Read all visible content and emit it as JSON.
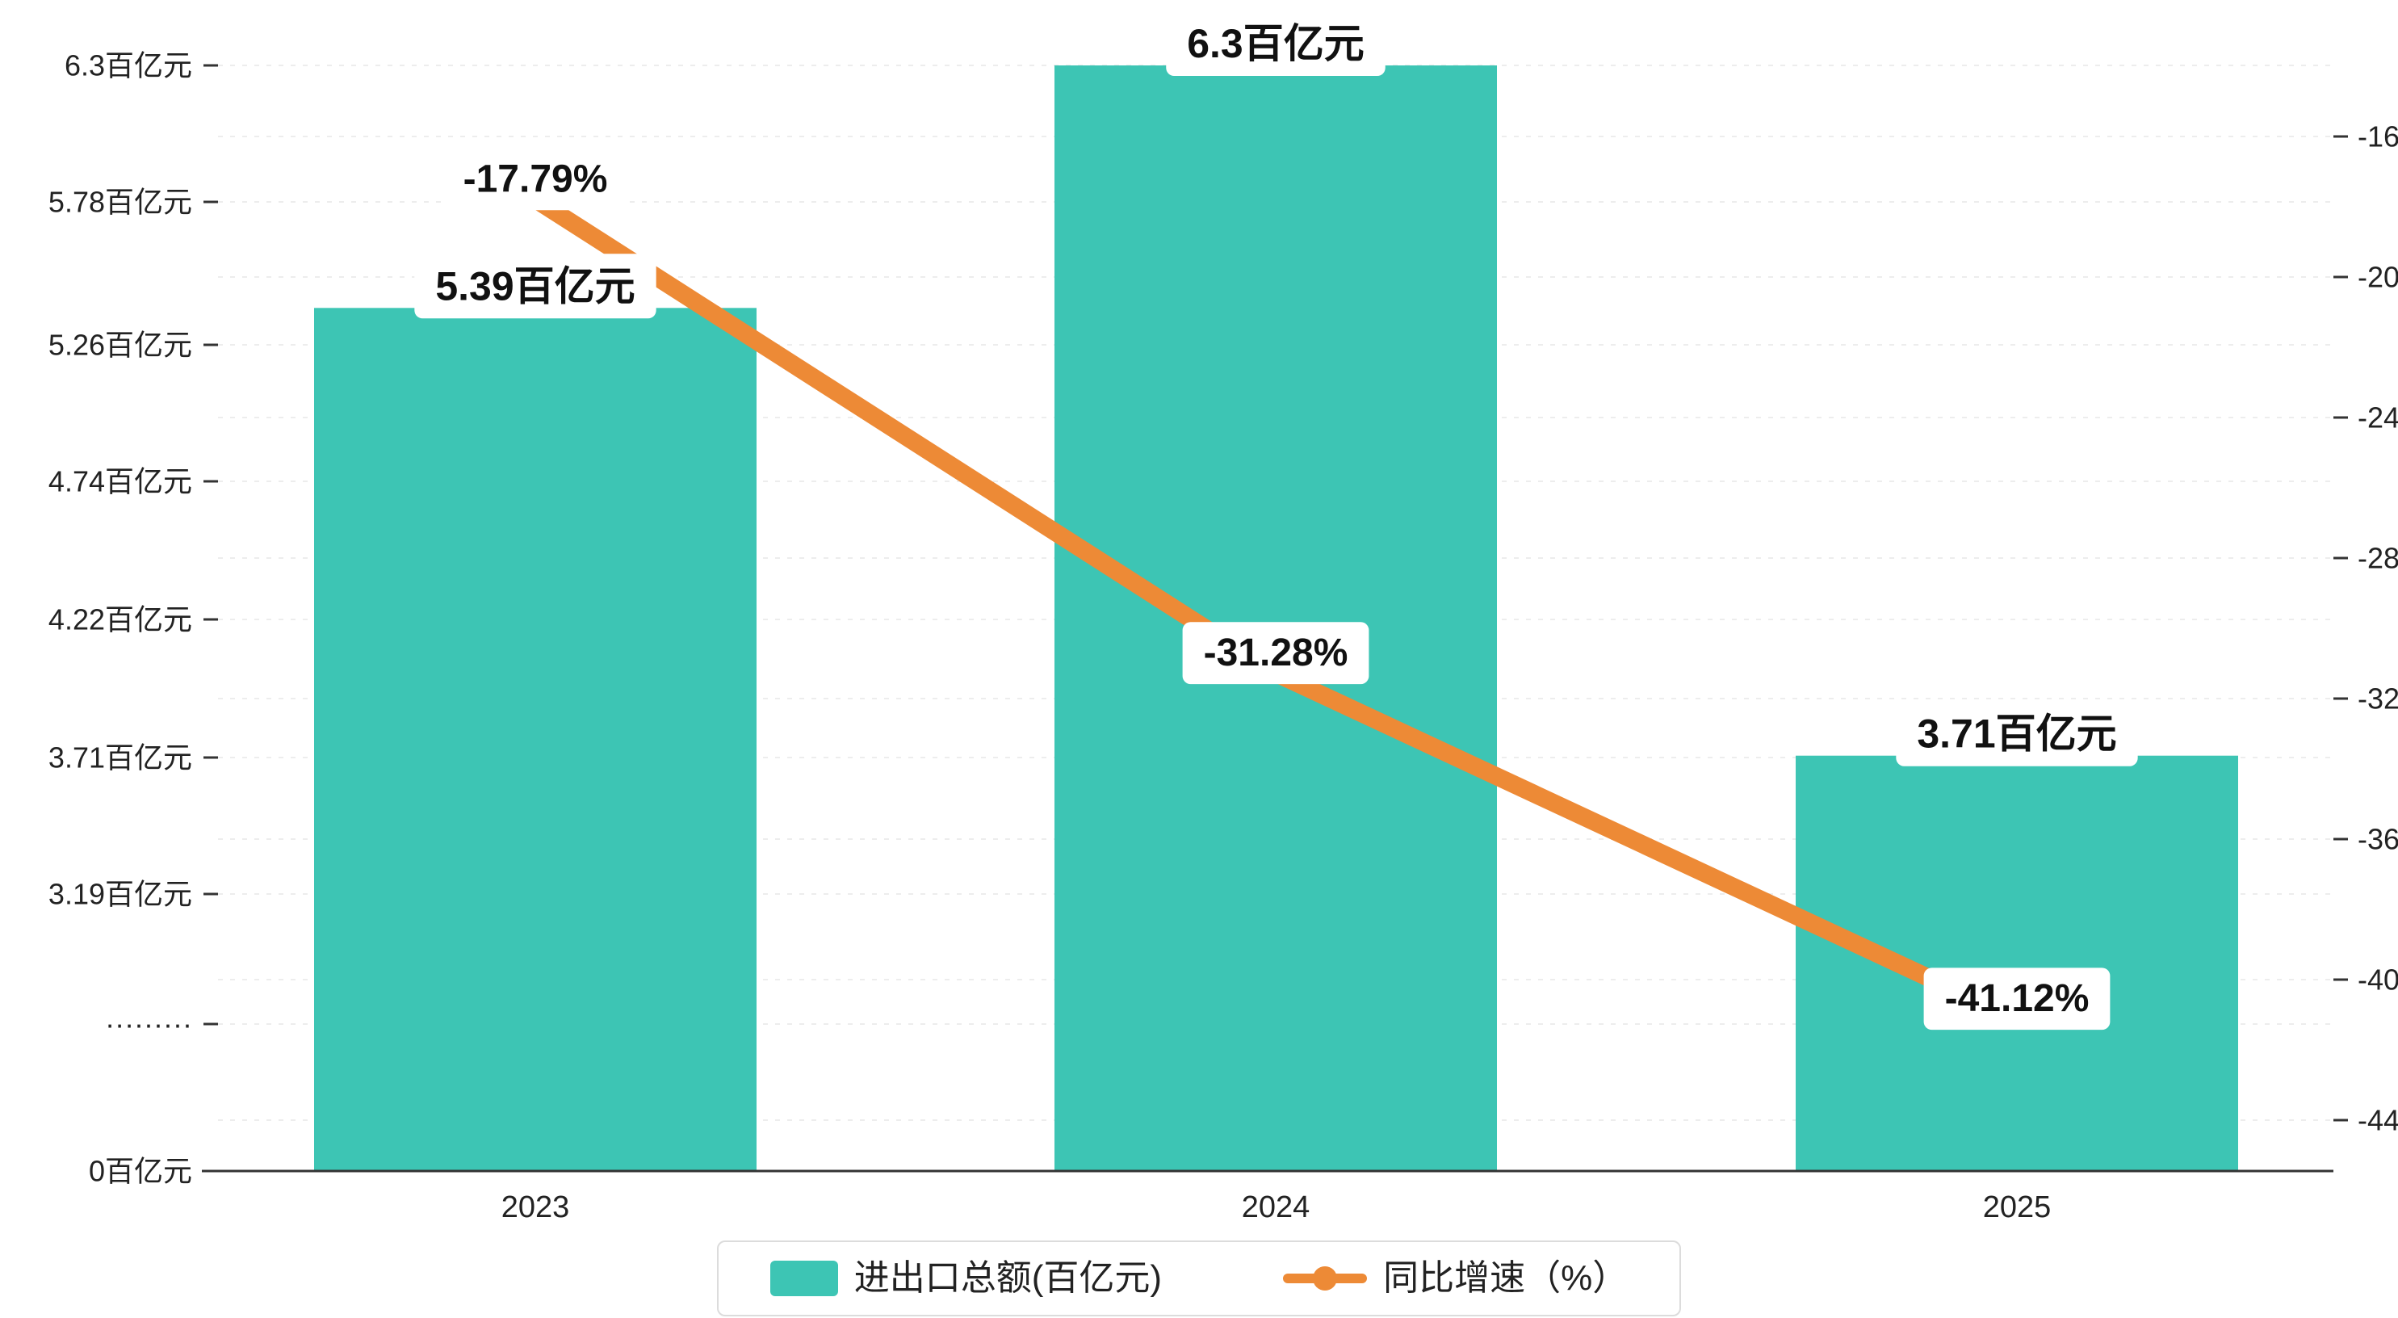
{
  "chart_data": {
    "type": "bar+line",
    "categories": [
      "2023",
      "2024",
      "2025"
    ],
    "series": [
      {
        "name": "进出口总额(百亿元)",
        "type": "bar",
        "axis": "left",
        "values": [
          5.39,
          6.3,
          3.71
        ],
        "labels": [
          "5.39百亿元",
          "6.3百亿元",
          "3.71百亿元"
        ],
        "color": "#3dc5b4"
      },
      {
        "name": "同比增速（%）",
        "type": "line",
        "axis": "right",
        "values": [
          -17.79,
          -31.28,
          -41.12
        ],
        "labels": [
          "-17.79%",
          "-31.28%",
          "-41.12%"
        ],
        "color": "#ed8a36"
      }
    ],
    "left_axis": {
      "tick_labels": [
        "6.3百亿元",
        "5.78百亿元",
        "5.26百亿元",
        "4.74百亿元",
        "4.22百亿元",
        "3.71百亿元",
        "3.19百亿元",
        "·········",
        "0百亿元"
      ],
      "axis_break": true
    },
    "right_axis": {
      "tick_labels": [
        "-16",
        "-20",
        "-24",
        "-28",
        "-32",
        "-36",
        "-40",
        "-44"
      ],
      "values": [
        -16,
        -20,
        -24,
        -28,
        -32,
        -36,
        -40,
        -44
      ]
    },
    "legend": {
      "position": "bottom",
      "items": [
        {
          "label": "进出口总额(百亿元)",
          "type": "bar"
        },
        {
          "label": "同比增速（%）",
          "type": "line"
        }
      ]
    },
    "grid": true
  },
  "colors": {
    "bar": "#3dc5b4",
    "line": "#ed8a36",
    "axis_text": "#222222",
    "axis_line": "#333333",
    "grid": "#ededed",
    "label_text": "#111111",
    "label_box": "#ffffff",
    "legend_border": "#dcdcdc",
    "background": "#ffffff"
  }
}
